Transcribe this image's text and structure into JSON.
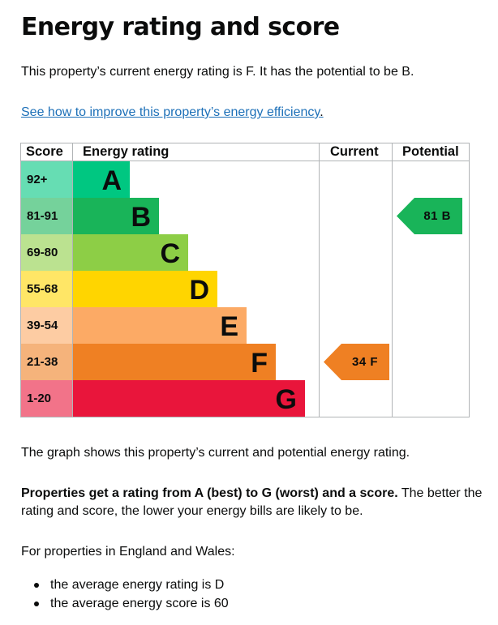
{
  "page": {
    "title": "Energy rating and score",
    "intro": "This property’s current energy rating is F. It has the potential to be B.",
    "improve_link": "See how to improve this property’s energy efficiency",
    "improve_link_suffix": "."
  },
  "chart_data": {
    "type": "table",
    "columns": [
      "Score",
      "Energy rating",
      "Current",
      "Potential"
    ],
    "bands": [
      {
        "score_range": "92+",
        "letter": "A",
        "color": "#00c781"
      },
      {
        "score_range": "81-91",
        "letter": "B",
        "color": "#19b459"
      },
      {
        "score_range": "69-80",
        "letter": "C",
        "color": "#8dce46"
      },
      {
        "score_range": "55-68",
        "letter": "D",
        "color": "#ffd500"
      },
      {
        "score_range": "39-54",
        "letter": "E",
        "color": "#fcaa65"
      },
      {
        "score_range": "21-38",
        "letter": "F",
        "color": "#ef8023"
      },
      {
        "score_range": "1-20",
        "letter": "G",
        "color": "#e9153b"
      }
    ],
    "current": {
      "score": 34,
      "letter": "F",
      "label": "34 F",
      "color": "#ef8023"
    },
    "potential": {
      "score": 81,
      "letter": "B",
      "label": "81 B",
      "color": "#19b459"
    }
  },
  "notes": {
    "graph_note": "The graph shows this property’s current and potential energy rating.",
    "rating_bold": "Properties get a rating from A (best) to G (worst) and a score.",
    "rating_rest": " The better the rating and score, the lower your energy bills are likely to be.",
    "region_note": "For properties in England and Wales:",
    "averages": [
      "the average energy rating is D",
      "the average energy score is 60"
    ]
  }
}
